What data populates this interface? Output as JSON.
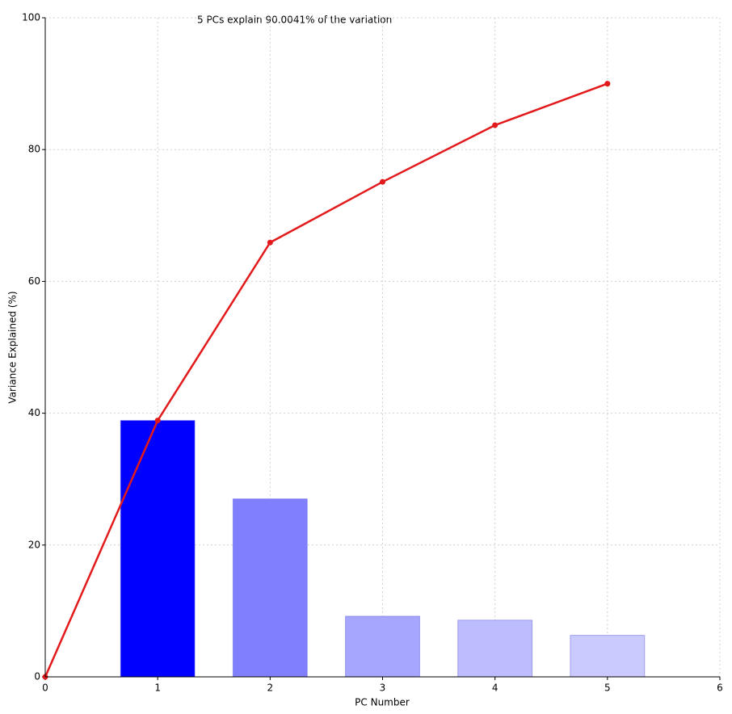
{
  "chart_data": {
    "type": "bar",
    "annotation": "5 PCs explain 90.0041% of the variation",
    "xlabel": "PC Number",
    "ylabel": "Variance Explained (%)",
    "bars": {
      "x": [
        1,
        2,
        3,
        4,
        5
      ],
      "values": [
        38.9,
        27.0,
        9.2,
        8.6,
        6.3
      ],
      "colors": [
        "#0000ff",
        "#8080ff",
        "#a6a6ff",
        "#bcbcff",
        "#cacaff"
      ]
    },
    "line": {
      "x": [
        0,
        1,
        2,
        3,
        4,
        5
      ],
      "values": [
        0,
        38.9,
        65.9,
        75.1,
        83.7,
        90.0
      ],
      "color": "#e31a1c"
    },
    "xlim": [
      0,
      6
    ],
    "xticks": [
      0,
      1,
      2,
      3,
      4,
      5,
      6
    ],
    "ylim": [
      0,
      100
    ],
    "yticks": [
      0,
      20,
      40,
      60,
      80,
      100
    ],
    "grid": true
  }
}
